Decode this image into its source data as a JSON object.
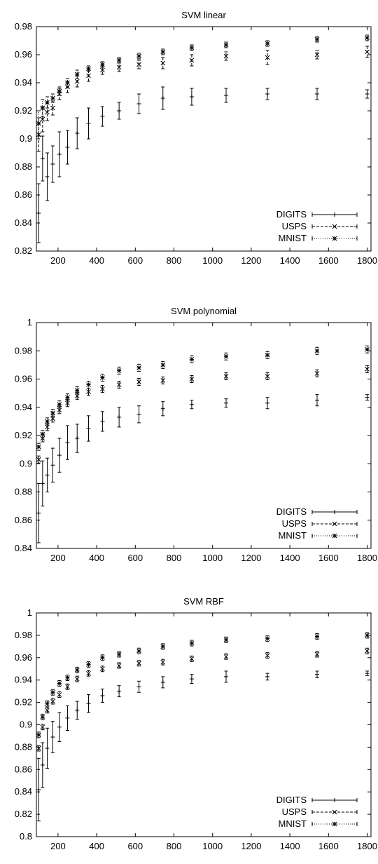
{
  "chart_data": [
    {
      "type": "line",
      "title": "SVM linear",
      "xlabel": "",
      "ylabel": "",
      "xlim": [
        88,
        1820
      ],
      "ylim": [
        0.82,
        0.98
      ],
      "xticks": [
        200,
        400,
        600,
        800,
        1000,
        1200,
        1400,
        1600,
        1800
      ],
      "xtick_labels": [
        "200",
        "400",
        "600",
        "800",
        "1000",
        "1200",
        "1400",
        "1600",
        "1800"
      ],
      "yticks": [
        0.82,
        0.84,
        0.86,
        0.88,
        0.9,
        0.92,
        0.94,
        0.96,
        0.98
      ],
      "ytick_labels": [
        "0.82",
        "0.84",
        "0.86",
        "0.88",
        "0.9",
        "0.92",
        "0.94",
        "0.96",
        "0.98"
      ],
      "legend_position": "bottom-right",
      "grid": false,
      "x": [
        100,
        120,
        144,
        173,
        207,
        249,
        299,
        358,
        430,
        516,
        619,
        743,
        892,
        1070,
        1284,
        1541,
        1800
      ],
      "series": [
        {
          "name": "DIGITS",
          "marker": "plus",
          "dash": "",
          "values": [
            0.847,
            0.886,
            0.873,
            0.882,
            0.889,
            0.894,
            0.904,
            0.911,
            0.916,
            0.92,
            0.925,
            0.929,
            0.93,
            0.931,
            0.932,
            0.932,
            0.932
          ],
          "errors": [
            0.021,
            0.016,
            0.017,
            0.013,
            0.016,
            0.012,
            0.011,
            0.011,
            0.007,
            0.006,
            0.007,
            0.008,
            0.006,
            0.005,
            0.004,
            0.004,
            0.003
          ]
        },
        {
          "name": "USPS",
          "marker": "x",
          "dash": "4,2",
          "values": [
            0.903,
            0.914,
            0.919,
            0.922,
            0.932,
            0.937,
            0.941,
            0.945,
            0.949,
            0.951,
            0.953,
            0.954,
            0.956,
            0.959,
            0.958,
            0.96,
            0.962
          ],
          "errors": [
            0.012,
            0.009,
            0.006,
            0.005,
            0.004,
            0.004,
            0.004,
            0.004,
            0.003,
            0.003,
            0.003,
            0.004,
            0.004,
            0.003,
            0.005,
            0.003,
            0.004
          ]
        },
        {
          "name": "MNIST",
          "marker": "star",
          "dash": "1,2",
          "values": [
            0.911,
            0.922,
            0.926,
            0.929,
            0.934,
            0.94,
            0.946,
            0.95,
            0.953,
            0.956,
            0.959,
            0.962,
            0.965,
            0.967,
            0.968,
            0.971,
            0.972
          ],
          "errors": [
            0.009,
            0.006,
            0.004,
            0.003,
            0.003,
            0.003,
            0.003,
            0.002,
            0.002,
            0.002,
            0.002,
            0.002,
            0.002,
            0.002,
            0.002,
            0.002,
            0.002
          ]
        }
      ]
    },
    {
      "type": "line",
      "title": "SVM polynomial",
      "xlabel": "",
      "ylabel": "",
      "xlim": [
        88,
        1820
      ],
      "ylim": [
        0.84,
        1.0
      ],
      "xticks": [
        200,
        400,
        600,
        800,
        1000,
        1200,
        1400,
        1600,
        1800
      ],
      "xtick_labels": [
        "200",
        "400",
        "600",
        "800",
        "1000",
        "1200",
        "1400",
        "1600",
        "1800"
      ],
      "yticks": [
        0.84,
        0.86,
        0.88,
        0.9,
        0.92,
        0.94,
        0.96,
        0.98,
        1.0
      ],
      "ytick_labels": [
        "0.84",
        "0.86",
        "0.88",
        "0.9",
        "0.92",
        "0.94",
        "0.96",
        "0.98",
        "1"
      ],
      "legend_position": "bottom-right",
      "grid": false,
      "x": [
        100,
        120,
        144,
        173,
        207,
        249,
        299,
        358,
        430,
        516,
        619,
        743,
        892,
        1070,
        1284,
        1541,
        1800
      ],
      "series": [
        {
          "name": "DIGITS",
          "marker": "plus",
          "dash": "",
          "values": [
            0.865,
            0.886,
            0.892,
            0.899,
            0.906,
            0.915,
            0.918,
            0.925,
            0.93,
            0.933,
            0.935,
            0.939,
            0.942,
            0.943,
            0.943,
            0.945,
            0.947
          ],
          "errors": [
            0.021,
            0.016,
            0.012,
            0.012,
            0.012,
            0.012,
            0.01,
            0.009,
            0.007,
            0.007,
            0.006,
            0.005,
            0.003,
            0.003,
            0.004,
            0.004,
            0.002
          ]
        },
        {
          "name": "USPS",
          "marker": "x",
          "dash": "4,2",
          "values": [
            0.903,
            0.918,
            0.926,
            0.932,
            0.938,
            0.943,
            0.948,
            0.951,
            0.953,
            0.956,
            0.958,
            0.959,
            0.96,
            0.962,
            0.962,
            0.964,
            0.967
          ]
        },
        {
          "name": "MNIST",
          "marker": "star",
          "dash": "1,2",
          "values": [
            0.912,
            0.921,
            0.93,
            0.936,
            0.942,
            0.947,
            0.952,
            0.956,
            0.961,
            0.966,
            0.968,
            0.97,
            0.974,
            0.976,
            0.977,
            0.98,
            0.981
          ]
        }
      ]
    },
    {
      "type": "line",
      "title": "SVM RBF",
      "xlabel": "",
      "ylabel": "",
      "xlim": [
        88,
        1820
      ],
      "ylim": [
        0.8,
        1.0
      ],
      "xticks": [
        200,
        400,
        600,
        800,
        1000,
        1200,
        1400,
        1600,
        1800
      ],
      "xtick_labels": [
        "200",
        "400",
        "600",
        "800",
        "1000",
        "1200",
        "1400",
        "1600",
        "1800"
      ],
      "yticks": [
        0.8,
        0.82,
        0.84,
        0.86,
        0.88,
        0.9,
        0.92,
        0.94,
        0.96,
        0.98,
        1.0
      ],
      "ytick_labels": [
        "0.8",
        "0.82",
        "0.84",
        "0.86",
        "0.88",
        "0.9",
        "0.92",
        "0.94",
        "0.96",
        "0.98",
        "1"
      ],
      "legend_position": "bottom-right",
      "grid": false,
      "x": [
        100,
        120,
        144,
        173,
        207,
        249,
        299,
        358,
        430,
        516,
        619,
        743,
        892,
        1070,
        1284,
        1541,
        1800
      ],
      "series": [
        {
          "name": "DIGITS",
          "marker": "plus",
          "dash": "",
          "values": [
            0.842,
            0.864,
            0.879,
            0.889,
            0.898,
            0.906,
            0.913,
            0.919,
            0.926,
            0.93,
            0.934,
            0.938,
            0.941,
            0.943,
            0.943,
            0.945,
            0.946
          ],
          "errors": [
            0.028,
            0.02,
            0.018,
            0.014,
            0.013,
            0.011,
            0.008,
            0.008,
            0.006,
            0.005,
            0.005,
            0.005,
            0.004,
            0.005,
            0.003,
            0.003,
            0.002
          ]
        },
        {
          "name": "USPS",
          "marker": "x",
          "dash": "4,2",
          "values": [
            0.879,
            0.898,
            0.913,
            0.921,
            0.927,
            0.934,
            0.941,
            0.946,
            0.95,
            0.953,
            0.955,
            0.956,
            0.959,
            0.961,
            0.962,
            0.963,
            0.966
          ]
        },
        {
          "name": "MNIST",
          "marker": "star",
          "dash": "1,2",
          "values": [
            0.891,
            0.907,
            0.919,
            0.929,
            0.937,
            0.942,
            0.949,
            0.954,
            0.96,
            0.963,
            0.966,
            0.97,
            0.973,
            0.976,
            0.977,
            0.979,
            0.98
          ]
        }
      ]
    }
  ]
}
